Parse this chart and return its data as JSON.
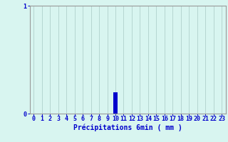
{
  "hours": [
    0,
    1,
    2,
    3,
    4,
    5,
    6,
    7,
    8,
    9,
    10,
    11,
    12,
    13,
    14,
    15,
    16,
    17,
    18,
    19,
    20,
    21,
    22,
    23
  ],
  "values": [
    0,
    0,
    0,
    0,
    0,
    0,
    0,
    0,
    0,
    0,
    0.2,
    0,
    0,
    0,
    0,
    0,
    0,
    0,
    0,
    0,
    0,
    0,
    0,
    0
  ],
  "bar_color": "#0000cc",
  "background_color": "#d8f5f0",
  "grid_color": "#b0d0cc",
  "axis_color": "#999999",
  "text_color": "#0000cc",
  "xlabel": "Précipitations 6min ( mm )",
  "ylim": [
    0,
    1
  ],
  "xlim": [
    -0.5,
    23.5
  ],
  "yticks": [
    0,
    1
  ],
  "xticks": [
    0,
    1,
    2,
    3,
    4,
    5,
    6,
    7,
    8,
    9,
    10,
    11,
    12,
    13,
    14,
    15,
    16,
    17,
    18,
    19,
    20,
    21,
    22,
    23
  ],
  "xlabel_fontsize": 7,
  "tick_fontsize": 6,
  "bar_width": 0.5
}
